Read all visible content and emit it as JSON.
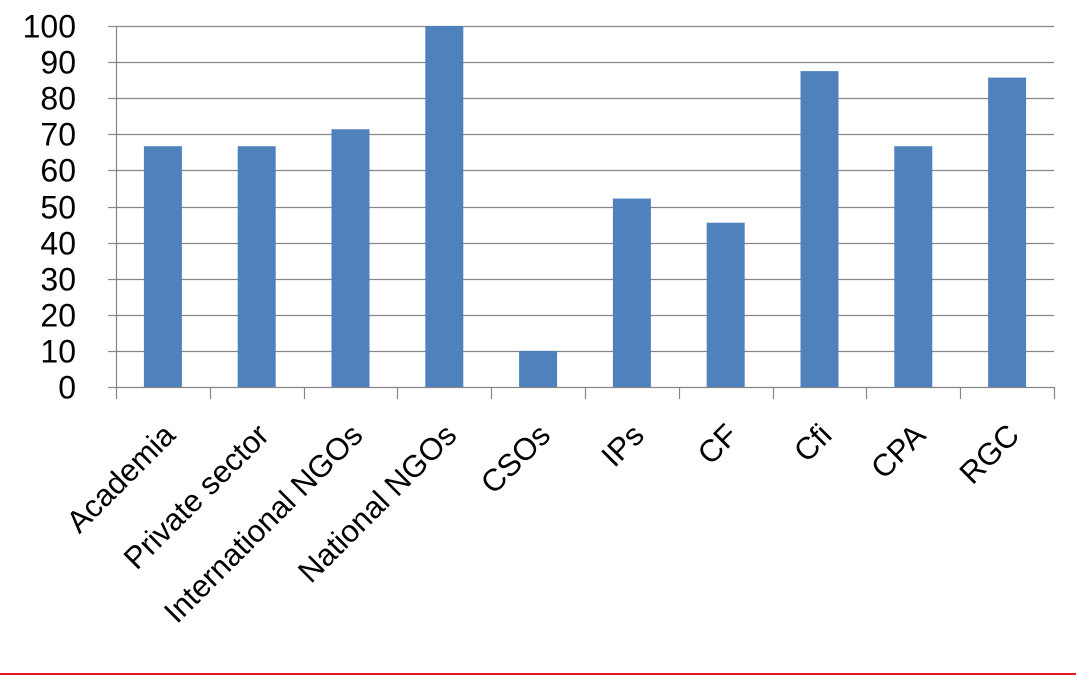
{
  "chart_data": {
    "type": "bar",
    "categories": [
      "Academia",
      "Private sector",
      "International NGOs",
      "National NGOs",
      "CSOs",
      "IPs",
      "CF",
      "Cfi",
      "CPA",
      "RGC"
    ],
    "values": [
      66.7,
      66.7,
      71.4,
      100,
      10,
      52.2,
      45.5,
      87.5,
      66.7,
      85.7
    ],
    "ylim": [
      0,
      100
    ],
    "yticks": [
      "0",
      "10",
      "20",
      "30",
      "40",
      "50",
      "60",
      "70",
      "80",
      "90",
      "100"
    ],
    "grid": true,
    "legend": "none",
    "bar_color": "#4F81BD",
    "grid_color": "#868686",
    "accent_line_color": "#E8161E"
  }
}
